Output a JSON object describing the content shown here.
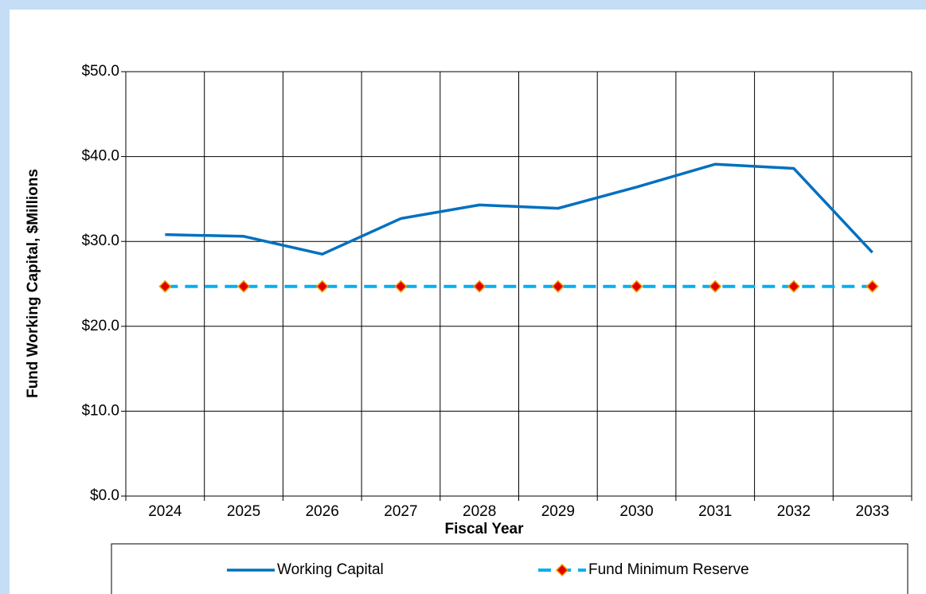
{
  "chart_data": {
    "type": "line",
    "categories": [
      "2024",
      "2025",
      "2026",
      "2027",
      "2028",
      "2029",
      "2030",
      "2031",
      "2032",
      "2033"
    ],
    "series": [
      {
        "name": "Working Capital",
        "color": "#0070c0",
        "dashed": false,
        "values": [
          30.8,
          30.6,
          28.5,
          32.7,
          34.3,
          33.9,
          36.4,
          39.1,
          38.6,
          28.7
        ]
      },
      {
        "name": "Fund Minimum Reserve",
        "color": "#00b0f0",
        "dashed": true,
        "marker": "diamond",
        "marker_color": "#e00000",
        "marker_edge": "#f0a000",
        "values": [
          24.7,
          24.7,
          24.7,
          24.7,
          24.7,
          24.7,
          24.7,
          24.7,
          24.7,
          24.7
        ]
      }
    ],
    "ylabel": "Fund Working Capital, $Millions",
    "xlabel": "Fiscal Year",
    "ylim": [
      0,
      50
    ],
    "yticks": [
      {
        "value": 0,
        "label": "$0.0"
      },
      {
        "value": 10,
        "label": "$10.0"
      },
      {
        "value": 20,
        "label": "$20.0"
      },
      {
        "value": 30,
        "label": "$30.0"
      },
      {
        "value": 40,
        "label": "$40.0"
      },
      {
        "value": 50,
        "label": "$50.0"
      }
    ],
    "grid": true,
    "legend": "bottom"
  }
}
